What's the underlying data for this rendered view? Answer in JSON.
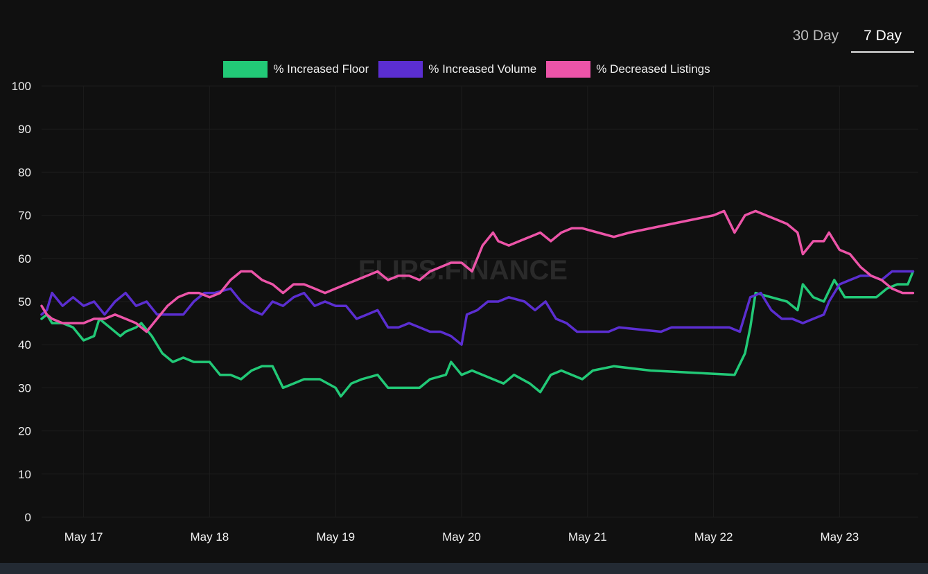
{
  "tabs": [
    {
      "label": "30 Day",
      "active": false
    },
    {
      "label": "7 Day",
      "active": true
    }
  ],
  "watermark": "FLIPS.FINANCE",
  "colors": {
    "background": "#101010",
    "grid": "#1c1c1c",
    "text": "#f0f0f0"
  },
  "chart_data": {
    "type": "line",
    "title": "",
    "xlabel": "",
    "ylabel": "",
    "ylim": [
      0,
      100
    ],
    "yticks": [
      0,
      10,
      20,
      30,
      40,
      50,
      60,
      70,
      80,
      90,
      100
    ],
    "xlim": [
      "2022-05-16 16:00",
      "2022-05-23 15:00"
    ],
    "xticks": [
      {
        "date": "2022-05-17 00:00",
        "label": "May 17"
      },
      {
        "date": "2022-05-18 00:00",
        "label": "May 18"
      },
      {
        "date": "2022-05-19 00:00",
        "label": "May 19"
      },
      {
        "date": "2022-05-20 00:00",
        "label": "May 20"
      },
      {
        "date": "2022-05-21 00:00",
        "label": "May 21"
      },
      {
        "date": "2022-05-22 00:00",
        "label": "May 22"
      },
      {
        "date": "2022-05-23 00:00",
        "label": "May 23"
      }
    ],
    "grid": true,
    "legend_position": "top-center",
    "series": [
      {
        "name": "% Increased Floor",
        "color": "#22c977",
        "points": [
          [
            "2022-05-16 16:00",
            46
          ],
          [
            "2022-05-16 17:00",
            47
          ],
          [
            "2022-05-16 18:00",
            45
          ],
          [
            "2022-05-16 20:00",
            45
          ],
          [
            "2022-05-16 22:00",
            44
          ],
          [
            "2022-05-17 00:00",
            41
          ],
          [
            "2022-05-17 02:00",
            42
          ],
          [
            "2022-05-17 03:00",
            46
          ],
          [
            "2022-05-17 05:00",
            44
          ],
          [
            "2022-05-17 07:00",
            42
          ],
          [
            "2022-05-17 08:00",
            43
          ],
          [
            "2022-05-17 10:00",
            44
          ],
          [
            "2022-05-17 11:00",
            45
          ],
          [
            "2022-05-17 13:00",
            42
          ],
          [
            "2022-05-17 15:00",
            38
          ],
          [
            "2022-05-17 17:00",
            36
          ],
          [
            "2022-05-17 19:00",
            37
          ],
          [
            "2022-05-17 21:00",
            36
          ],
          [
            "2022-05-18 00:00",
            36
          ],
          [
            "2022-05-18 02:00",
            33
          ],
          [
            "2022-05-18 04:00",
            33
          ],
          [
            "2022-05-18 06:00",
            32
          ],
          [
            "2022-05-18 08:00",
            34
          ],
          [
            "2022-05-18 10:00",
            35
          ],
          [
            "2022-05-18 12:00",
            35
          ],
          [
            "2022-05-18 14:00",
            30
          ],
          [
            "2022-05-18 16:00",
            31
          ],
          [
            "2022-05-18 18:00",
            32
          ],
          [
            "2022-05-18 21:00",
            32
          ],
          [
            "2022-05-19 00:00",
            30
          ],
          [
            "2022-05-19 01:00",
            28
          ],
          [
            "2022-05-19 03:00",
            31
          ],
          [
            "2022-05-19 05:00",
            32
          ],
          [
            "2022-05-19 08:00",
            33
          ],
          [
            "2022-05-19 10:00",
            30
          ],
          [
            "2022-05-19 12:00",
            30
          ],
          [
            "2022-05-19 16:00",
            30
          ],
          [
            "2022-05-19 18:00",
            32
          ],
          [
            "2022-05-19 21:00",
            33
          ],
          [
            "2022-05-19 22:00",
            36
          ],
          [
            "2022-05-20 00:00",
            33
          ],
          [
            "2022-05-20 02:00",
            34
          ],
          [
            "2022-05-20 04:00",
            33
          ],
          [
            "2022-05-20 06:00",
            32
          ],
          [
            "2022-05-20 08:00",
            31
          ],
          [
            "2022-05-20 10:00",
            33
          ],
          [
            "2022-05-20 13:00",
            31
          ],
          [
            "2022-05-20 15:00",
            29
          ],
          [
            "2022-05-20 17:00",
            33
          ],
          [
            "2022-05-20 19:00",
            34
          ],
          [
            "2022-05-20 21:00",
            33
          ],
          [
            "2022-05-20 23:00",
            32
          ],
          [
            "2022-05-21 01:00",
            34
          ],
          [
            "2022-05-21 05:00",
            35
          ],
          [
            "2022-05-21 12:00",
            34
          ],
          [
            "2022-05-22 04:00",
            33
          ],
          [
            "2022-05-22 06:00",
            38
          ],
          [
            "2022-05-22 07:00",
            44
          ],
          [
            "2022-05-22 08:00",
            52
          ],
          [
            "2022-05-22 11:00",
            51
          ],
          [
            "2022-05-22 14:00",
            50
          ],
          [
            "2022-05-22 16:00",
            48
          ],
          [
            "2022-05-22 17:00",
            54
          ],
          [
            "2022-05-22 19:00",
            51
          ],
          [
            "2022-05-22 21:00",
            50
          ],
          [
            "2022-05-22 23:00",
            55
          ],
          [
            "2022-05-23 01:00",
            51
          ],
          [
            "2022-05-23 04:00",
            51
          ],
          [
            "2022-05-23 07:00",
            51
          ],
          [
            "2022-05-23 09:00",
            53
          ],
          [
            "2022-05-23 11:00",
            54
          ],
          [
            "2022-05-23 13:00",
            54
          ],
          [
            "2022-05-23 14:00",
            57
          ]
        ]
      },
      {
        "name": "% Increased Volume",
        "color": "#5b2ed1",
        "points": [
          [
            "2022-05-16 16:00",
            47
          ],
          [
            "2022-05-16 17:00",
            48
          ],
          [
            "2022-05-16 18:00",
            52
          ],
          [
            "2022-05-16 20:00",
            49
          ],
          [
            "2022-05-16 22:00",
            51
          ],
          [
            "2022-05-17 00:00",
            49
          ],
          [
            "2022-05-17 02:00",
            50
          ],
          [
            "2022-05-17 04:00",
            47
          ],
          [
            "2022-05-17 06:00",
            50
          ],
          [
            "2022-05-17 08:00",
            52
          ],
          [
            "2022-05-17 10:00",
            49
          ],
          [
            "2022-05-17 12:00",
            50
          ],
          [
            "2022-05-17 14:00",
            47
          ],
          [
            "2022-05-17 17:00",
            47
          ],
          [
            "2022-05-17 19:00",
            47
          ],
          [
            "2022-05-17 21:00",
            50
          ],
          [
            "2022-05-17 23:00",
            52
          ],
          [
            "2022-05-18 01:00",
            52
          ],
          [
            "2022-05-18 04:00",
            53
          ],
          [
            "2022-05-18 06:00",
            50
          ],
          [
            "2022-05-18 08:00",
            48
          ],
          [
            "2022-05-18 10:00",
            47
          ],
          [
            "2022-05-18 12:00",
            50
          ],
          [
            "2022-05-18 14:00",
            49
          ],
          [
            "2022-05-18 16:00",
            51
          ],
          [
            "2022-05-18 18:00",
            52
          ],
          [
            "2022-05-18 20:00",
            49
          ],
          [
            "2022-05-18 22:00",
            50
          ],
          [
            "2022-05-19 00:00",
            49
          ],
          [
            "2022-05-19 02:00",
            49
          ],
          [
            "2022-05-19 04:00",
            46
          ],
          [
            "2022-05-19 06:00",
            47
          ],
          [
            "2022-05-19 08:00",
            48
          ],
          [
            "2022-05-19 10:00",
            44
          ],
          [
            "2022-05-19 12:00",
            44
          ],
          [
            "2022-05-19 14:00",
            45
          ],
          [
            "2022-05-19 16:00",
            44
          ],
          [
            "2022-05-19 18:00",
            43
          ],
          [
            "2022-05-19 20:00",
            43
          ],
          [
            "2022-05-19 22:00",
            42
          ],
          [
            "2022-05-20 00:00",
            40
          ],
          [
            "2022-05-20 01:00",
            47
          ],
          [
            "2022-05-20 03:00",
            48
          ],
          [
            "2022-05-20 05:00",
            50
          ],
          [
            "2022-05-20 07:00",
            50
          ],
          [
            "2022-05-20 09:00",
            51
          ],
          [
            "2022-05-20 12:00",
            50
          ],
          [
            "2022-05-20 14:00",
            48
          ],
          [
            "2022-05-20 16:00",
            50
          ],
          [
            "2022-05-20 18:00",
            46
          ],
          [
            "2022-05-20 20:00",
            45
          ],
          [
            "2022-05-20 22:00",
            43
          ],
          [
            "2022-05-21 00:00",
            43
          ],
          [
            "2022-05-21 04:00",
            43
          ],
          [
            "2022-05-21 06:00",
            44
          ],
          [
            "2022-05-21 14:00",
            43
          ],
          [
            "2022-05-21 16:00",
            44
          ],
          [
            "2022-05-22 03:00",
            44
          ],
          [
            "2022-05-22 05:00",
            43
          ],
          [
            "2022-05-22 07:00",
            51
          ],
          [
            "2022-05-22 09:00",
            52
          ],
          [
            "2022-05-22 11:00",
            48
          ],
          [
            "2022-05-22 13:00",
            46
          ],
          [
            "2022-05-22 15:00",
            46
          ],
          [
            "2022-05-22 17:00",
            45
          ],
          [
            "2022-05-22 19:00",
            46
          ],
          [
            "2022-05-22 21:00",
            47
          ],
          [
            "2022-05-22 22:00",
            50
          ],
          [
            "2022-05-23 00:00",
            54
          ],
          [
            "2022-05-23 02:00",
            55
          ],
          [
            "2022-05-23 04:00",
            56
          ],
          [
            "2022-05-23 06:00",
            56
          ],
          [
            "2022-05-23 08:00",
            55
          ],
          [
            "2022-05-23 10:00",
            57
          ],
          [
            "2022-05-23 12:00",
            57
          ],
          [
            "2022-05-23 14:00",
            57
          ]
        ]
      },
      {
        "name": "% Decreased Listings",
        "color": "#ec54a8",
        "points": [
          [
            "2022-05-16 16:00",
            49
          ],
          [
            "2022-05-16 17:00",
            47
          ],
          [
            "2022-05-16 18:00",
            46
          ],
          [
            "2022-05-16 20:00",
            45
          ],
          [
            "2022-05-16 22:00",
            45
          ],
          [
            "2022-05-17 00:00",
            45
          ],
          [
            "2022-05-17 02:00",
            46
          ],
          [
            "2022-05-17 04:00",
            46
          ],
          [
            "2022-05-17 06:00",
            47
          ],
          [
            "2022-05-17 08:00",
            46
          ],
          [
            "2022-05-17 10:00",
            45
          ],
          [
            "2022-05-17 12:00",
            43
          ],
          [
            "2022-05-17 14:00",
            46
          ],
          [
            "2022-05-17 16:00",
            49
          ],
          [
            "2022-05-17 18:00",
            51
          ],
          [
            "2022-05-17 20:00",
            52
          ],
          [
            "2022-05-17 22:00",
            52
          ],
          [
            "2022-05-18 00:00",
            51
          ],
          [
            "2022-05-18 02:00",
            52
          ],
          [
            "2022-05-18 04:00",
            55
          ],
          [
            "2022-05-18 06:00",
            57
          ],
          [
            "2022-05-18 08:00",
            57
          ],
          [
            "2022-05-18 10:00",
            55
          ],
          [
            "2022-05-18 12:00",
            54
          ],
          [
            "2022-05-18 14:00",
            52
          ],
          [
            "2022-05-18 16:00",
            54
          ],
          [
            "2022-05-18 18:00",
            54
          ],
          [
            "2022-05-18 20:00",
            53
          ],
          [
            "2022-05-18 22:00",
            52
          ],
          [
            "2022-05-19 00:00",
            53
          ],
          [
            "2022-05-19 02:00",
            54
          ],
          [
            "2022-05-19 04:00",
            55
          ],
          [
            "2022-05-19 06:00",
            56
          ],
          [
            "2022-05-19 08:00",
            57
          ],
          [
            "2022-05-19 10:00",
            55
          ],
          [
            "2022-05-19 12:00",
            56
          ],
          [
            "2022-05-19 14:00",
            56
          ],
          [
            "2022-05-19 16:00",
            55
          ],
          [
            "2022-05-19 18:00",
            57
          ],
          [
            "2022-05-19 20:00",
            58
          ],
          [
            "2022-05-19 22:00",
            59
          ],
          [
            "2022-05-20 00:00",
            59
          ],
          [
            "2022-05-20 02:00",
            57
          ],
          [
            "2022-05-20 04:00",
            63
          ],
          [
            "2022-05-20 06:00",
            66
          ],
          [
            "2022-05-20 07:00",
            64
          ],
          [
            "2022-05-20 09:00",
            63
          ],
          [
            "2022-05-20 11:00",
            64
          ],
          [
            "2022-05-20 13:00",
            65
          ],
          [
            "2022-05-20 15:00",
            66
          ],
          [
            "2022-05-20 17:00",
            64
          ],
          [
            "2022-05-20 19:00",
            66
          ],
          [
            "2022-05-20 21:00",
            67
          ],
          [
            "2022-05-20 23:00",
            67
          ],
          [
            "2022-05-21 02:00",
            66
          ],
          [
            "2022-05-21 05:00",
            65
          ],
          [
            "2022-05-21 08:00",
            66
          ],
          [
            "2022-05-21 16:00",
            68
          ],
          [
            "2022-05-22 00:00",
            70
          ],
          [
            "2022-05-22 02:00",
            71
          ],
          [
            "2022-05-22 04:00",
            66
          ],
          [
            "2022-05-22 06:00",
            70
          ],
          [
            "2022-05-22 08:00",
            71
          ],
          [
            "2022-05-22 10:00",
            70
          ],
          [
            "2022-05-22 12:00",
            69
          ],
          [
            "2022-05-22 14:00",
            68
          ],
          [
            "2022-05-22 16:00",
            66
          ],
          [
            "2022-05-22 17:00",
            61
          ],
          [
            "2022-05-22 19:00",
            64
          ],
          [
            "2022-05-22 21:00",
            64
          ],
          [
            "2022-05-22 22:00",
            66
          ],
          [
            "2022-05-23 00:00",
            62
          ],
          [
            "2022-05-23 02:00",
            61
          ],
          [
            "2022-05-23 04:00",
            58
          ],
          [
            "2022-05-23 06:00",
            56
          ],
          [
            "2022-05-23 08:00",
            55
          ],
          [
            "2022-05-23 10:00",
            53
          ],
          [
            "2022-05-23 12:00",
            52
          ],
          [
            "2022-05-23 14:00",
            52
          ]
        ]
      }
    ]
  }
}
